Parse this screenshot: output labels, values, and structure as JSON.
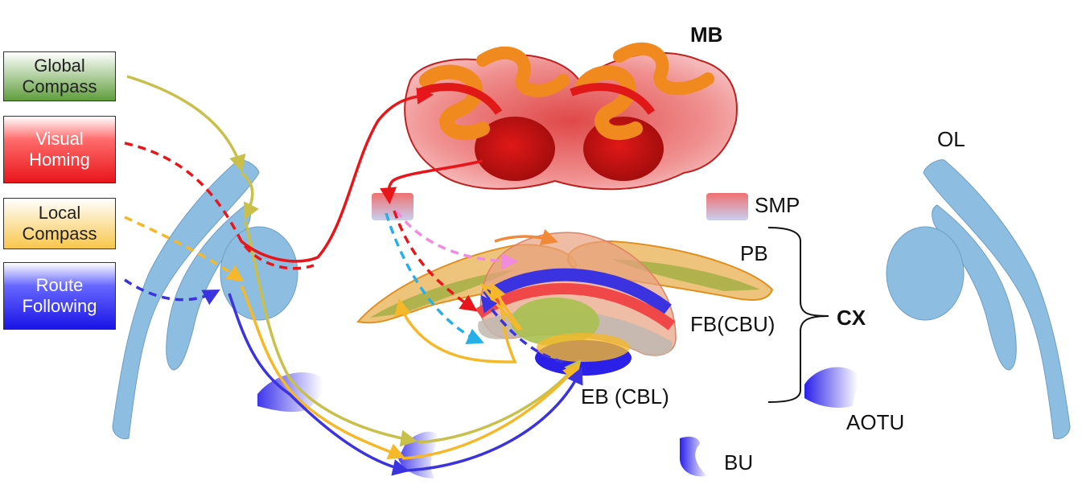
{
  "legend": {
    "global_compass": [
      "Global",
      "Compass"
    ],
    "visual_homing": [
      "Visual",
      "Homing"
    ],
    "local_compass": [
      "Local",
      "Compass"
    ],
    "route_following": [
      "Route",
      "Following"
    ]
  },
  "labels": {
    "mb": "MB",
    "ol": "OL",
    "smp": "SMP",
    "pb": "PB",
    "fb": "FB(CBU)",
    "cx": "CX",
    "eb": "EB (CBL)",
    "aotu": "AOTU",
    "bu": "BU"
  },
  "colors": {
    "global_compass": "#c8c04a",
    "visual_homing": "#e8151a",
    "local_compass": "#f5b82a",
    "route_following": "#3b33e0",
    "pink_path": "#f08be0",
    "cyan_path": "#27b0e8",
    "neuropil_blue": "#8dbde0",
    "mb_red": "#d81e1e",
    "mb_orange": "#f08a1e"
  }
}
